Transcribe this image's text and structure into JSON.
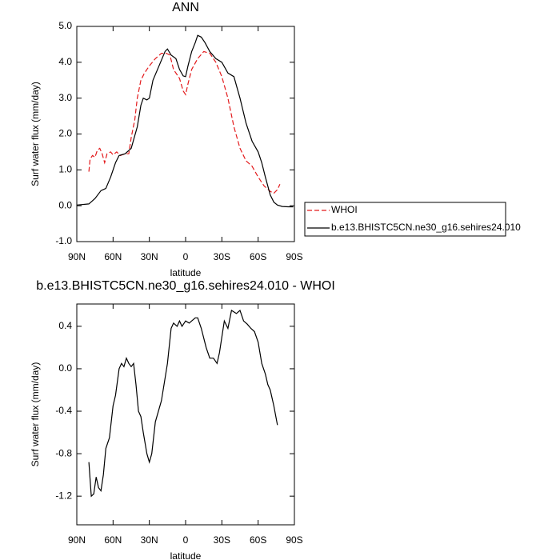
{
  "chart_data": [
    {
      "type": "line",
      "title": "ANN",
      "xlabel": "latitude",
      "ylabel": "Surf water flux (mm/day)",
      "xlim": [
        90,
        -90
      ],
      "xticks": [
        {
          "value": 90,
          "label": "90N"
        },
        {
          "value": 60,
          "label": "60N"
        },
        {
          "value": 30,
          "label": "30N"
        },
        0,
        {
          "value": -30,
          "label": "30S"
        },
        {
          "value": -60,
          "label": "60S"
        },
        {
          "value": -90,
          "label": "90S"
        }
      ],
      "ylim": [
        -1,
        5
      ],
      "yticks": [
        {
          "value": -1,
          "label": "-1.0"
        },
        {
          "value": 0,
          "label": "0.0"
        },
        {
          "value": 1,
          "label": "1.0"
        },
        {
          "value": 2,
          "label": "2.0"
        },
        {
          "value": 3,
          "label": "3.0"
        },
        {
          "value": 4,
          "label": "4.0"
        },
        {
          "value": 5,
          "label": "5.0"
        }
      ],
      "legend": "outside-right",
      "series": [
        {
          "name": "WHOI",
          "color": "#e31a1c",
          "dashed": true,
          "x": [
            80,
            79,
            77,
            75,
            73,
            71,
            69,
            67,
            65,
            62,
            60,
            57,
            54,
            50,
            47,
            45,
            42,
            40,
            37,
            34,
            30,
            25,
            20,
            16,
            13,
            10,
            5,
            2,
            0,
            -2,
            -5,
            -10,
            -15,
            -20,
            -25,
            -30,
            -35,
            -40,
            -45,
            -50,
            -55,
            -60,
            -65,
            -70,
            -73,
            -76,
            -78
          ],
          "values": [
            0.95,
            1.3,
            1.4,
            1.35,
            1.55,
            1.6,
            1.45,
            1.2,
            1.45,
            1.5,
            1.42,
            1.5,
            1.4,
            1.45,
            1.45,
            1.9,
            2.4,
            3.0,
            3.5,
            3.7,
            3.9,
            4.1,
            4.25,
            4.25,
            4.2,
            3.8,
            3.55,
            3.2,
            3.1,
            3.4,
            3.8,
            4.1,
            4.3,
            4.25,
            4.0,
            3.6,
            3.0,
            2.2,
            1.6,
            1.25,
            1.1,
            0.8,
            0.55,
            0.4,
            0.35,
            0.45,
            0.6
          ]
        },
        {
          "name": "b.e13.BHISTC5CN.ne30_g16.sehires24.010",
          "color": "#000000",
          "dashed": false,
          "x": [
            90,
            80,
            75,
            70,
            66,
            62,
            58,
            55,
            50,
            45,
            40,
            37,
            35,
            32,
            30,
            27,
            22,
            17,
            15,
            12,
            8,
            5,
            2,
            0,
            -2,
            -5,
            -8,
            -10,
            -13,
            -16,
            -20,
            -25,
            -30,
            -35,
            -40,
            -45,
            -50,
            -55,
            -60,
            -63,
            -66,
            -70,
            -73,
            -76,
            -80,
            -85,
            -89
          ],
          "values": [
            0.02,
            0.05,
            0.2,
            0.42,
            0.48,
            0.8,
            1.2,
            1.4,
            1.45,
            1.6,
            2.2,
            2.8,
            3.0,
            2.95,
            3.0,
            3.5,
            3.9,
            4.3,
            4.37,
            4.2,
            4.1,
            3.8,
            3.62,
            3.6,
            3.9,
            4.3,
            4.55,
            4.75,
            4.7,
            4.55,
            4.3,
            4.1,
            4.0,
            3.7,
            3.6,
            3.0,
            2.3,
            1.8,
            1.5,
            1.2,
            0.8,
            0.3,
            0.1,
            0.02,
            -0.02,
            -0.03,
            -0.03
          ]
        }
      ]
    },
    {
      "type": "line",
      "title": "b.e13.BHISTC5CN.ne30_g16.sehires24.010 - WHOI",
      "xlabel": "latitude",
      "ylabel": "Surf water flux (mm/day)",
      "xlim": [
        90,
        -90
      ],
      "xticks": [
        {
          "value": 90,
          "label": "90N"
        },
        {
          "value": 60,
          "label": "60N"
        },
        {
          "value": 30,
          "label": "30N"
        },
        0,
        {
          "value": -30,
          "label": "30S"
        },
        {
          "value": -60,
          "label": "60S"
        },
        {
          "value": -90,
          "label": "90S"
        }
      ],
      "ylim": [
        -1.47,
        0.61
      ],
      "yticks": [
        -1.2,
        -0.8,
        -0.4,
        {
          "value": 0,
          "label": "0.0"
        },
        0.4
      ],
      "series": [
        {
          "color": "#000000",
          "dashed": false,
          "x": [
            80,
            78,
            76,
            74,
            72,
            70,
            68,
            66,
            63,
            60,
            58,
            55,
            53,
            51,
            49,
            47,
            45,
            43,
            41,
            39,
            37,
            35,
            32,
            30,
            28,
            25,
            20,
            15,
            12,
            10,
            7,
            5,
            3,
            0,
            -3,
            -5,
            -8,
            -10,
            -13,
            -17,
            -20,
            -23,
            -26,
            -28,
            -32,
            -35,
            -38,
            -42,
            -45,
            -48,
            -51,
            -54,
            -57,
            -60,
            -63,
            -66,
            -68,
            -70,
            -73,
            -76
          ],
          "values": [
            -0.88,
            -1.2,
            -1.18,
            -1.02,
            -1.12,
            -1.15,
            -1.0,
            -0.75,
            -0.65,
            -0.35,
            -0.25,
            0.0,
            0.05,
            0.02,
            0.1,
            0.05,
            0.02,
            0.05,
            -0.15,
            -0.4,
            -0.45,
            -0.6,
            -0.8,
            -0.88,
            -0.8,
            -0.5,
            -0.3,
            0.05,
            0.38,
            0.43,
            0.4,
            0.45,
            0.4,
            0.45,
            0.43,
            0.45,
            0.48,
            0.48,
            0.38,
            0.2,
            0.1,
            0.1,
            0.05,
            0.15,
            0.45,
            0.38,
            0.55,
            0.52,
            0.55,
            0.45,
            0.42,
            0.38,
            0.35,
            0.25,
            0.05,
            -0.05,
            -0.15,
            -0.2,
            -0.35,
            -0.53
          ]
        }
      ]
    }
  ]
}
